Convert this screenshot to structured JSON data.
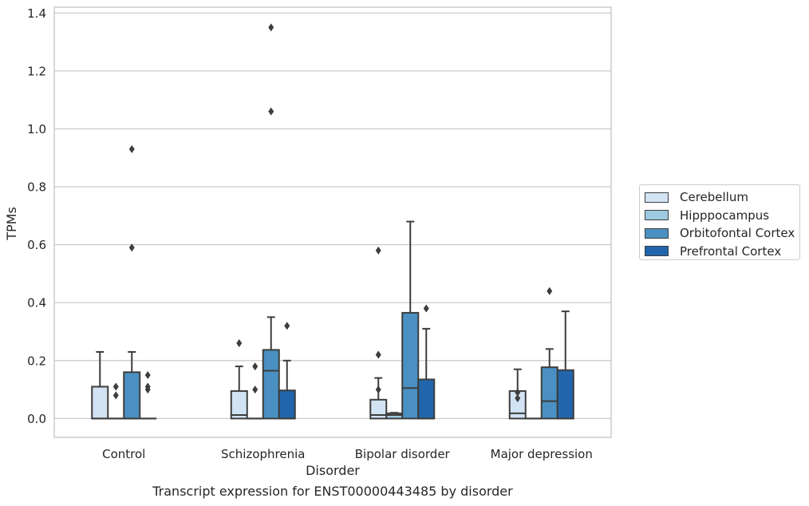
{
  "caption": "Transcript expression for ENST00000443485 by disorder",
  "chart_data": {
    "type": "box",
    "title": "",
    "xlabel": "Disorder",
    "ylabel": "TPMs",
    "ylim": [
      -0.065,
      1.42
    ],
    "yticks": [
      0.0,
      0.2,
      0.4,
      0.6,
      0.8,
      1.0,
      1.2,
      1.4
    ],
    "ytick_labels": [
      "0.0",
      "0.2",
      "0.4",
      "0.6",
      "0.8",
      "1.0",
      "1.2",
      "1.4"
    ],
    "grid": "horizontal",
    "legend_position": "right",
    "categories": [
      "Control",
      "Schizophrenia",
      "Bipolar disorder",
      "Major depression"
    ],
    "series": [
      {
        "name": "Cerebellum",
        "color": "#d2e3f3",
        "boxes": [
          {
            "q1": 0.0,
            "median": 0.0,
            "q3": 0.11,
            "whisker_low": 0.0,
            "whisker_high": 0.23,
            "outliers": []
          },
          {
            "q1": 0.0,
            "median": 0.012,
            "q3": 0.095,
            "whisker_low": 0.0,
            "whisker_high": 0.18,
            "outliers": [
              0.26
            ]
          },
          {
            "q1": 0.0,
            "median": 0.012,
            "q3": 0.065,
            "whisker_low": 0.0,
            "whisker_high": 0.14,
            "outliers": [
              0.1,
              0.22,
              0.58
            ]
          },
          {
            "q1": 0.0,
            "median": 0.018,
            "q3": 0.095,
            "whisker_low": 0.0,
            "whisker_high": 0.17,
            "outliers": [
              0.07,
              0.09
            ]
          }
        ]
      },
      {
        "name": "Hipppocampus",
        "color": "#9ecae1",
        "boxes": [
          {
            "q1": 0.0,
            "median": 0.0,
            "q3": 0.0,
            "whisker_low": 0.0,
            "whisker_high": 0.0,
            "outliers": [
              0.08,
              0.11
            ]
          },
          {
            "q1": 0.0,
            "median": 0.0,
            "q3": 0.0,
            "whisker_low": 0.0,
            "whisker_high": 0.0,
            "outliers": [
              0.1,
              0.18
            ]
          },
          {
            "q1": 0.0,
            "median": 0.012,
            "q3": 0.018,
            "whisker_low": 0.0,
            "whisker_high": 0.02,
            "outliers": []
          },
          {
            "q1": 0.0,
            "median": 0.0,
            "q3": 0.0,
            "whisker_low": 0.0,
            "whisker_high": 0.0,
            "outliers": []
          }
        ]
      },
      {
        "name": "Orbitofontal Cortex",
        "color": "#4a90c2",
        "boxes": [
          {
            "q1": 0.0,
            "median": 0.0,
            "q3": 0.16,
            "whisker_low": 0.0,
            "whisker_high": 0.23,
            "outliers": [
              0.59,
              0.93
            ]
          },
          {
            "q1": 0.0,
            "median": 0.165,
            "q3": 0.237,
            "whisker_low": 0.0,
            "whisker_high": 0.35,
            "outliers": [
              1.06,
              1.35
            ]
          },
          {
            "q1": 0.0,
            "median": 0.105,
            "q3": 0.365,
            "whisker_low": 0.0,
            "whisker_high": 0.68,
            "outliers": []
          },
          {
            "q1": 0.0,
            "median": 0.06,
            "q3": 0.177,
            "whisker_low": 0.0,
            "whisker_high": 0.24,
            "outliers": [
              0.44
            ]
          }
        ]
      },
      {
        "name": "Prefrontal Cortex",
        "color": "#2166ac",
        "boxes": [
          {
            "q1": 0.0,
            "median": 0.0,
            "q3": 0.0,
            "whisker_low": 0.0,
            "whisker_high": 0.0,
            "outliers": [
              0.1,
              0.11,
              0.15
            ]
          },
          {
            "q1": 0.0,
            "median": 0.0,
            "q3": 0.097,
            "whisker_low": 0.0,
            "whisker_high": 0.2,
            "outliers": [
              0.32
            ]
          },
          {
            "q1": 0.0,
            "median": 0.0,
            "q3": 0.135,
            "whisker_low": 0.0,
            "whisker_high": 0.31,
            "outliers": [
              0.38
            ]
          },
          {
            "q1": 0.0,
            "median": 0.0,
            "q3": 0.167,
            "whisker_low": 0.0,
            "whisker_high": 0.37,
            "outliers": []
          }
        ]
      }
    ]
  }
}
